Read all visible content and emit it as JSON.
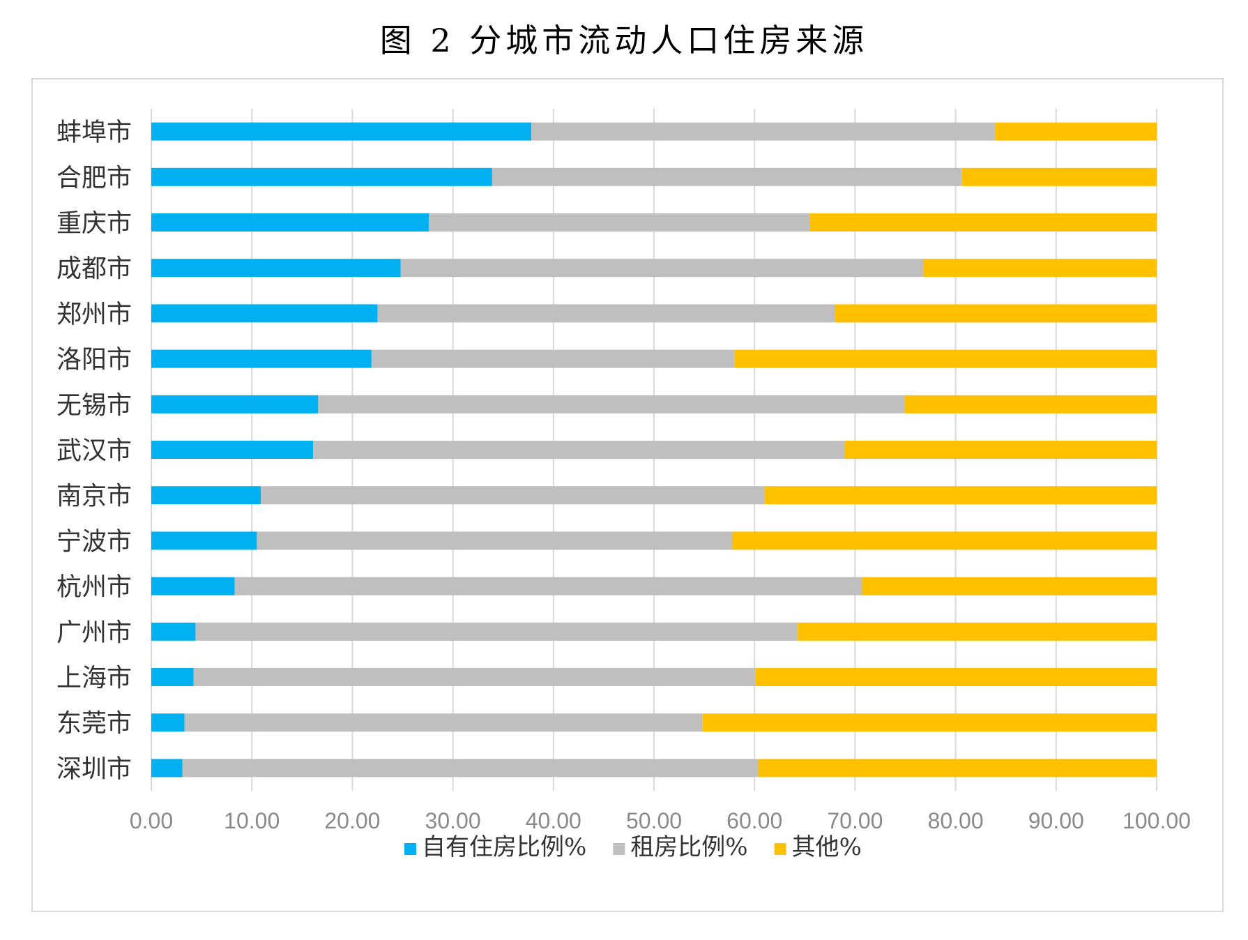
{
  "title": "图 2  分城市流动人口住房来源",
  "chart_data": {
    "type": "bar",
    "orientation": "horizontal",
    "stacked": true,
    "categories": [
      "蚌埠市",
      "合肥市",
      "重庆市",
      "成都市",
      "郑州市",
      "洛阳市",
      "无锡市",
      "武汉市",
      "南京市",
      "宁波市",
      "杭州市",
      "广州市",
      "上海市",
      "东莞市",
      "深圳市"
    ],
    "series": [
      {
        "name": "自有住房比例%",
        "color": "#00b0f0",
        "values": [
          37.8,
          33.9,
          27.6,
          24.8,
          22.5,
          21.9,
          16.6,
          16.1,
          10.9,
          10.5,
          8.3,
          4.4,
          4.2,
          3.3,
          3.1
        ]
      },
      {
        "name": "租房比例%",
        "color": "#bfbfbf",
        "values": [
          46.1,
          46.7,
          37.9,
          52.0,
          45.5,
          36.1,
          58.3,
          52.9,
          50.1,
          47.3,
          62.4,
          59.9,
          55.9,
          51.5,
          57.3
        ]
      },
      {
        "name": "其他%",
        "color": "#ffc000",
        "values": [
          16.1,
          19.4,
          34.5,
          23.2,
          32.0,
          42.0,
          25.1,
          31.0,
          39.0,
          42.2,
          29.3,
          35.7,
          39.9,
          45.2,
          39.6
        ]
      }
    ],
    "xlim": [
      0,
      100
    ],
    "xticks": [
      "0.00",
      "10.00",
      "20.00",
      "30.00",
      "40.00",
      "50.00",
      "60.00",
      "70.00",
      "80.00",
      "90.00",
      "100.00"
    ],
    "grid": true,
    "legend_position": "bottom"
  }
}
